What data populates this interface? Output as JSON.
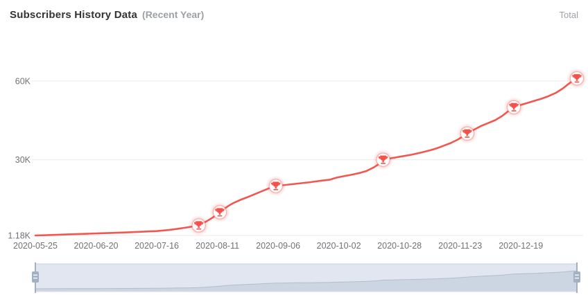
{
  "header": {
    "title": "Subscribers History Data",
    "subtitle": "(Recent Year)",
    "legend_total": "Total"
  },
  "colors": {
    "line": "#f4554e",
    "trophy": "#f4514b",
    "marker_glow_outer": "rgba(244,85,78,0.08)",
    "marker_glow": "rgba(244,85,78,0.16)",
    "marker_ring": "rgba(244,85,78,0.45)",
    "grid": "#e9e9e9",
    "axis_text": "#6e7176",
    "title_text": "#333333",
    "muted_text": "#9da0a5",
    "slider_fill": "#e1e6f0",
    "slider_border": "#ccd3e0",
    "slider_shadow_line": "#b3bdcf",
    "slider_shadow_area": "rgba(167,183,204,0.35)",
    "handle": "#a2b0c6"
  },
  "chart_data": {
    "type": "line",
    "title": "Subscribers History Data (Recent Year)",
    "series_name": "Total",
    "legend_position": "top-right",
    "grid": true,
    "x_unit": "days since 2020-05-25",
    "x_tick_days": [
      0,
      26,
      52,
      78,
      104,
      130,
      156,
      182,
      208
    ],
    "x_tick_labels": [
      "2020-05-25",
      "2020-06-20",
      "2020-07-16",
      "2020-08-11",
      "2020-09-06",
      "2020-10-02",
      "2020-10-28",
      "2020-11-23",
      "2020-12-19"
    ],
    "y_axis_min": 1180,
    "y_ticks": [
      {
        "value": 1180,
        "label": "1.18K"
      },
      {
        "value": 30000,
        "label": "30K"
      },
      {
        "value": 60000,
        "label": "60K"
      }
    ],
    "points": [
      [
        0,
        1180
      ],
      [
        6,
        1350
      ],
      [
        13,
        1550
      ],
      [
        20,
        1750
      ],
      [
        26,
        1950
      ],
      [
        33,
        2150
      ],
      [
        40,
        2400
      ],
      [
        46,
        2600
      ],
      [
        52,
        2850
      ],
      [
        57,
        3250
      ],
      [
        61,
        3700
      ],
      [
        65,
        4250
      ],
      [
        68,
        4700
      ],
      [
        70,
        5000
      ],
      [
        72,
        5900
      ],
      [
        74,
        6900
      ],
      [
        76,
        8000
      ],
      [
        78,
        9300
      ],
      [
        79,
        10000
      ],
      [
        81,
        11400
      ],
      [
        83,
        12600
      ],
      [
        85,
        13600
      ],
      [
        88,
        14800
      ],
      [
        91,
        15800
      ],
      [
        94,
        16900
      ],
      [
        97,
        18000
      ],
      [
        100,
        19100
      ],
      [
        102,
        19700
      ],
      [
        103,
        20000
      ],
      [
        106,
        20300
      ],
      [
        110,
        20700
      ],
      [
        114,
        21100
      ],
      [
        118,
        21500
      ],
      [
        122,
        22000
      ],
      [
        126,
        22400
      ],
      [
        129,
        23200
      ],
      [
        133,
        23900
      ],
      [
        136,
        24400
      ],
      [
        139,
        25000
      ],
      [
        142,
        25800
      ],
      [
        145,
        27100
      ],
      [
        147,
        28300
      ],
      [
        149,
        30000
      ],
      [
        153,
        30700
      ],
      [
        157,
        31300
      ],
      [
        161,
        31900
      ],
      [
        165,
        32700
      ],
      [
        169,
        33600
      ],
      [
        172,
        34400
      ],
      [
        175,
        35400
      ],
      [
        178,
        36400
      ],
      [
        181,
        37700
      ],
      [
        183,
        38800
      ],
      [
        185,
        40000
      ],
      [
        188,
        41500
      ],
      [
        191,
        42900
      ],
      [
        194,
        44000
      ],
      [
        197,
        45100
      ],
      [
        200,
        46700
      ],
      [
        202,
        48100
      ],
      [
        205,
        50000
      ],
      [
        208,
        50900
      ],
      [
        211,
        51700
      ],
      [
        214,
        52500
      ],
      [
        217,
        53300
      ],
      [
        220,
        54300
      ],
      [
        223,
        55500
      ],
      [
        226,
        57200
      ],
      [
        229,
        59300
      ],
      [
        232,
        61000
      ]
    ],
    "milestones": [
      {
        "day": 70,
        "value": 5000
      },
      {
        "day": 79,
        "value": 10000
      },
      {
        "day": 103,
        "value": 20000
      },
      {
        "day": 149,
        "value": 30000
      },
      {
        "day": 185,
        "value": 40000
      },
      {
        "day": 205,
        "value": 50000
      },
      {
        "day": 232,
        "value": 61000
      }
    ]
  }
}
